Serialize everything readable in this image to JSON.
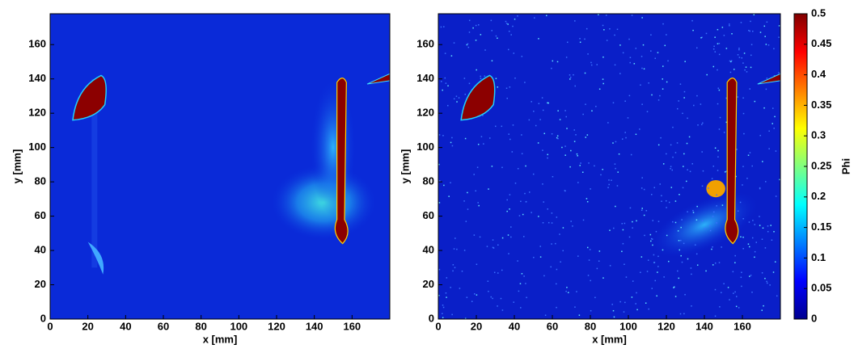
{
  "chart_data": [
    {
      "type": "heatmap",
      "xlabel": "x [mm]",
      "ylabel": "y [mm]",
      "xlim": [
        0,
        180
      ],
      "ylim": [
        0,
        178
      ],
      "xticks": [
        0,
        20,
        40,
        60,
        80,
        100,
        120,
        140,
        160
      ],
      "yticks": [
        0,
        20,
        40,
        60,
        80,
        100,
        120,
        140,
        160
      ],
      "noise": false
    },
    {
      "type": "heatmap",
      "xlabel": "x [mm]",
      "ylabel": "y [mm]",
      "xlim": [
        0,
        180
      ],
      "ylim": [
        0,
        178
      ],
      "xticks": [
        0,
        20,
        40,
        60,
        80,
        100,
        120,
        140,
        160
      ],
      "yticks": [
        0,
        20,
        40,
        60,
        80,
        100,
        120,
        140,
        160
      ],
      "noise": true,
      "colorbar": {
        "label": "Phi",
        "colormap": "jet",
        "lim": [
          0,
          0.5
        ],
        "ticks": [
          0,
          0.05,
          0.1,
          0.15,
          0.2,
          0.25,
          0.3,
          0.35,
          0.4,
          0.45,
          0.5
        ]
      }
    }
  ]
}
